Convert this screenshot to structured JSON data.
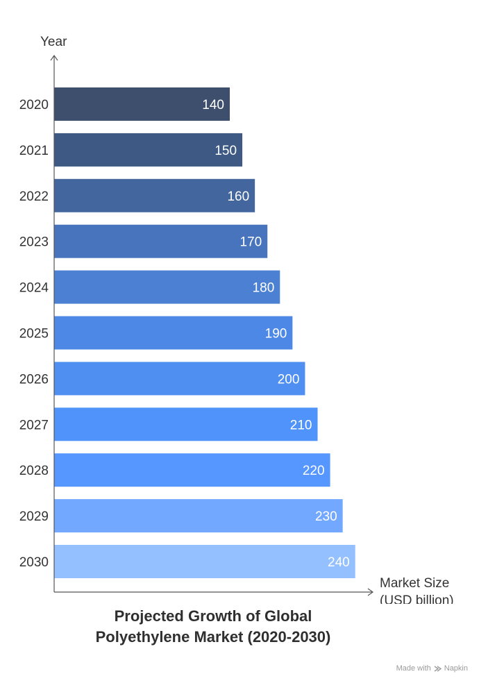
{
  "chart_data": {
    "type": "bar",
    "orientation": "horizontal",
    "title_lines": [
      "Projected Growth of Global",
      "Polyethylene Market (2020-2030)"
    ],
    "ylabel": "Year",
    "xlabel_lines": [
      "Market Size",
      "(USD billion)"
    ],
    "categories": [
      "2020",
      "2021",
      "2022",
      "2023",
      "2024",
      "2025",
      "2026",
      "2027",
      "2028",
      "2029",
      "2030"
    ],
    "values": [
      140,
      150,
      160,
      170,
      180,
      190,
      200,
      210,
      220,
      230,
      240
    ],
    "bar_colors": [
      "#3d4f6d",
      "#3e5a84",
      "#43669f",
      "#4874bd",
      "#4c80d3",
      "#4d88e6",
      "#4f8ff2",
      "#5093fb",
      "#5596ff",
      "#72a8ff",
      "#95c0ff"
    ],
    "data_labels": true,
    "grid": false
  },
  "footer": {
    "made_with": "Made with",
    "brand": "Napkin"
  }
}
